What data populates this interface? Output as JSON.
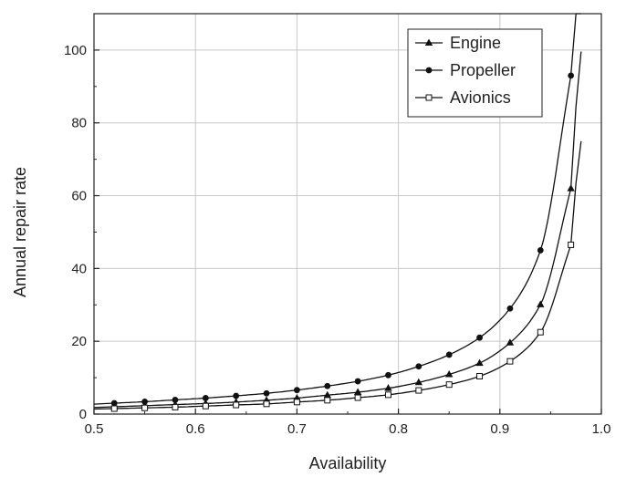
{
  "chart_data": {
    "type": "line",
    "title": "",
    "xlabel": "Availability",
    "ylabel": "Annual repair rate",
    "xlim": [
      0.5,
      1.0
    ],
    "ylim": [
      0,
      110
    ],
    "xticks": [
      0.5,
      0.6,
      0.7,
      0.8,
      0.9,
      1.0
    ],
    "xtick_labels": [
      "0.5",
      "0.6",
      "0.7",
      "0.8",
      "0.9",
      "1.0"
    ],
    "yticks": [
      0,
      20,
      40,
      60,
      80,
      100
    ],
    "ytick_labels": [
      "0",
      "20",
      "40",
      "60",
      "80",
      "100"
    ],
    "grid": true,
    "legend_position": "top-right",
    "series": [
      {
        "name": "Engine",
        "marker": "triangle",
        "marker_x": [
          0.52,
          0.55,
          0.58,
          0.61,
          0.64,
          0.67,
          0.7,
          0.73,
          0.76,
          0.79,
          0.82,
          0.85,
          0.88,
          0.91,
          0.94,
          0.97
        ],
        "values": [
          2.0,
          2.3,
          2.6,
          2.9,
          3.3,
          3.8,
          4.4,
          5.2,
          6.0,
          7.1,
          8.7,
          10.9,
          14.0,
          19.6,
          30.1,
          62.0
        ]
      },
      {
        "name": "Propeller",
        "marker": "circle",
        "marker_x": [
          0.52,
          0.55,
          0.58,
          0.61,
          0.64,
          0.67,
          0.7,
          0.73,
          0.76,
          0.79,
          0.82,
          0.85,
          0.88,
          0.91,
          0.94,
          0.97
        ],
        "values": [
          3.0,
          3.4,
          3.9,
          4.4,
          5.0,
          5.7,
          6.6,
          7.7,
          9.0,
          10.7,
          13.1,
          16.3,
          21.0,
          29.0,
          45.0,
          93.0
        ]
      },
      {
        "name": "Avionics",
        "marker": "open-square",
        "marker_x": [
          0.52,
          0.55,
          0.58,
          0.61,
          0.64,
          0.67,
          0.7,
          0.73,
          0.76,
          0.79,
          0.82,
          0.85,
          0.88,
          0.91,
          0.94,
          0.97
        ],
        "values": [
          1.5,
          1.7,
          1.9,
          2.2,
          2.5,
          2.8,
          3.3,
          3.8,
          4.5,
          5.3,
          6.5,
          8.1,
          10.4,
          14.5,
          22.5,
          46.5
        ]
      }
    ]
  }
}
